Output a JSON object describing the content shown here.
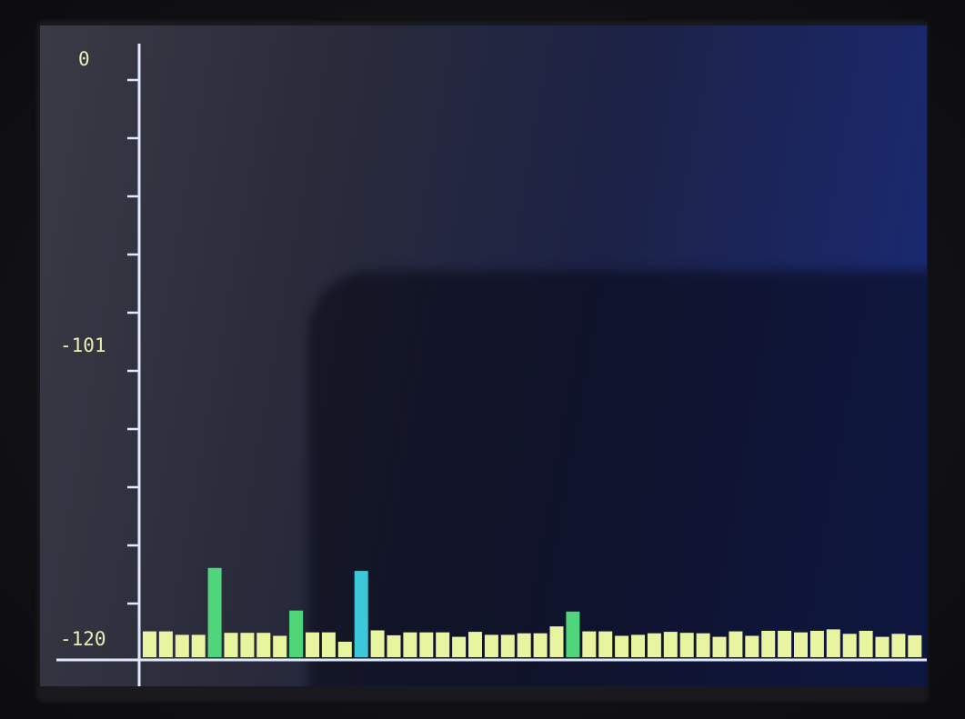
{
  "chart_data": {
    "type": "bar",
    "title": "",
    "xlabel": "",
    "ylabel": "",
    "y_tick_labels": [
      "0",
      "-101",
      "-120"
    ],
    "ylim": [
      -120,
      0
    ],
    "grid": false,
    "colors": {
      "normal": "#e8f4a0",
      "peak_green": "#4fd67a",
      "peak_cyan": "#3cc8d8",
      "axis": "#dfe8ff"
    },
    "values": [
      -115.7,
      -115.7,
      -116.4,
      -116.4,
      -102.9,
      -116.0,
      -116.0,
      -116.0,
      -116.6,
      -111.5,
      -115.9,
      -115.9,
      -117.8,
      -103.5,
      -115.5,
      -116.5,
      -115.9,
      -115.9,
      -115.9,
      -116.8,
      -115.8,
      -116.4,
      -116.4,
      -116.1,
      -116.1,
      -114.7,
      -111.7,
      -115.7,
      -115.7,
      -116.6,
      -116.4,
      -116.1,
      -115.8,
      -116.0,
      -116.1,
      -116.8,
      -115.7,
      -116.6,
      -115.6,
      -115.6,
      -115.9,
      -115.6,
      -115.3,
      -116.2,
      -115.6,
      -116.8,
      -116.2,
      -116.5
    ],
    "bar_colors": [
      "normal",
      "normal",
      "normal",
      "normal",
      "peak_green",
      "normal",
      "normal",
      "normal",
      "normal",
      "peak_green",
      "normal",
      "normal",
      "normal",
      "peak_cyan",
      "normal",
      "normal",
      "normal",
      "normal",
      "normal",
      "normal",
      "normal",
      "normal",
      "normal",
      "normal",
      "normal",
      "normal",
      "peak_green",
      "normal",
      "normal",
      "normal",
      "normal",
      "normal",
      "normal",
      "normal",
      "normal",
      "normal",
      "normal",
      "normal",
      "normal",
      "normal",
      "normal",
      "normal",
      "normal",
      "normal",
      "normal",
      "normal",
      "normal",
      "normal"
    ]
  }
}
